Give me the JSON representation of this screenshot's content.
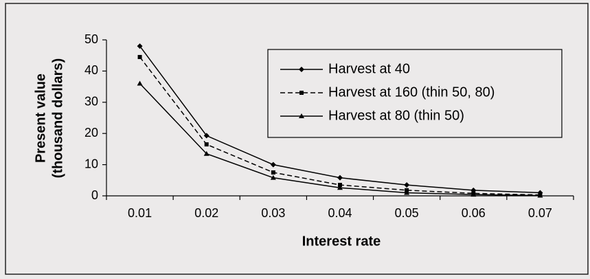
{
  "chart_data": {
    "type": "line",
    "ylabel": [
      "Present value",
      "(thousand dollars)"
    ],
    "xlabel": "Interest rate",
    "categories": [
      "0.01",
      "0.02",
      "0.03",
      "0.04",
      "0.05",
      "0.06",
      "0.07"
    ],
    "series": [
      {
        "name": "Harvest at 40",
        "color": "#000000",
        "marker": "diamond",
        "dashed": false,
        "values": [
          48,
          19.3,
          10,
          5.8,
          3.5,
          1.8,
          1.0
        ]
      },
      {
        "name": "Harvest at 160 (thin 50, 80)",
        "color": "#000000",
        "marker": "square",
        "dashed": true,
        "values": [
          44.5,
          16.5,
          7.5,
          3.5,
          1.8,
          0.8,
          0.3
        ]
      },
      {
        "name": "Harvest at 80 (thin 50)",
        "color": "#000000",
        "marker": "triangle",
        "dashed": false,
        "values": [
          36,
          13.5,
          5.8,
          2.6,
          1.0,
          0.4,
          0.1
        ]
      }
    ],
    "ylim": [
      0,
      50
    ],
    "yticks": [
      0,
      10,
      20,
      30,
      40,
      50
    ],
    "legend": "top-right"
  }
}
